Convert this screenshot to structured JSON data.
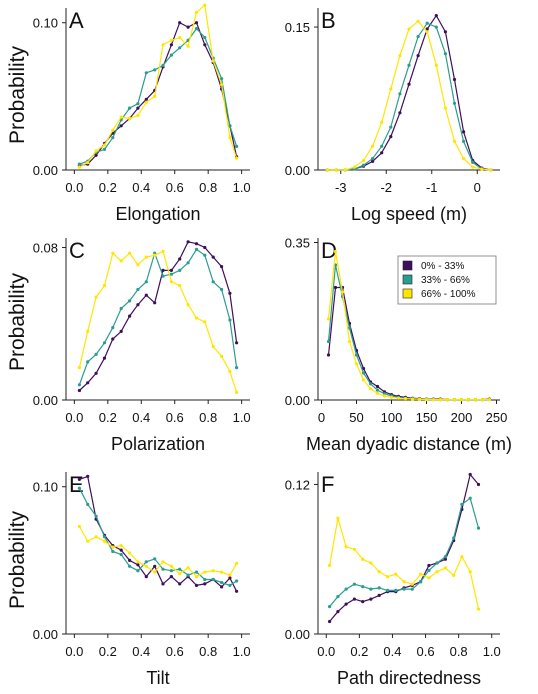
{
  "colors": {
    "c1": "#3f0e5c",
    "c2": "#2a9d8f",
    "c3": "#ffe600"
  },
  "ylabel": "Probability",
  "legend": {
    "placement": "top-right of panel D",
    "entries": [
      "0% - 33%",
      "33% - 66%",
      "66% - 100%"
    ]
  },
  "chart_data": [
    {
      "panel": "A",
      "type": "line",
      "xlabel": "Elongation",
      "ylabel": "Probability",
      "xlim": [
        -0.05,
        1.05
      ],
      "ylim": [
        0,
        0.11
      ],
      "xticks": [
        "0.0",
        "0.2",
        "0.4",
        "0.6",
        "0.8",
        "1.0"
      ],
      "xtick_values": [
        0,
        0.2,
        0.4,
        0.6,
        0.8,
        1.0
      ],
      "yticks": [
        "0.00",
        "0.10"
      ],
      "ytick_values": [
        0,
        0.1
      ],
      "x": [
        0.03,
        0.08,
        0.13,
        0.18,
        0.23,
        0.28,
        0.33,
        0.38,
        0.43,
        0.48,
        0.53,
        0.58,
        0.63,
        0.68,
        0.73,
        0.78,
        0.83,
        0.88,
        0.93,
        0.97
      ],
      "series": [
        {
          "color": "c1",
          "values": [
            0.003,
            0.004,
            0.01,
            0.018,
            0.025,
            0.03,
            0.035,
            0.042,
            0.048,
            0.054,
            0.07,
            0.085,
            0.1,
            0.097,
            0.1,
            0.085,
            0.073,
            0.055,
            0.03,
            0.009
          ]
        },
        {
          "color": "c2",
          "values": [
            0.004,
            0.006,
            0.012,
            0.014,
            0.022,
            0.034,
            0.042,
            0.045,
            0.066,
            0.068,
            0.071,
            0.078,
            0.083,
            0.088,
            0.096,
            0.09,
            0.076,
            0.062,
            0.03,
            0.016
          ]
        },
        {
          "color": "c3",
          "values": [
            0.002,
            0.005,
            0.013,
            0.017,
            0.027,
            0.036,
            0.035,
            0.037,
            0.046,
            0.05,
            0.085,
            0.088,
            0.09,
            0.084,
            0.107,
            0.112,
            0.074,
            0.058,
            0.022,
            0.008
          ]
        }
      ]
    },
    {
      "panel": "B",
      "type": "line",
      "xlabel": "Log speed (m)",
      "ylabel": "",
      "xlim": [
        -3.5,
        0.5
      ],
      "ylim": [
        0,
        0.17
      ],
      "xticks": [
        "-3",
        "-2",
        "-1",
        "0"
      ],
      "xtick_values": [
        -3,
        -2,
        -1,
        0
      ],
      "yticks": [
        "0.00",
        "0.15"
      ],
      "ytick_values": [
        0,
        0.15
      ],
      "x": [
        -3.3,
        -3.1,
        -2.9,
        -2.7,
        -2.5,
        -2.3,
        -2.1,
        -1.9,
        -1.7,
        -1.5,
        -1.3,
        -1.1,
        -0.9,
        -0.7,
        -0.5,
        -0.3,
        -0.1,
        0.1,
        0.3
      ],
      "series": [
        {
          "color": "c1",
          "values": [
            0.0,
            0.0,
            0.0,
            0.001,
            0.004,
            0.009,
            0.018,
            0.035,
            0.06,
            0.09,
            0.12,
            0.148,
            0.162,
            0.145,
            0.095,
            0.04,
            0.01,
            0.002,
            0.0
          ]
        },
        {
          "color": "c2",
          "values": [
            0.0,
            0.0,
            0.0,
            0.001,
            0.005,
            0.012,
            0.025,
            0.045,
            0.08,
            0.11,
            0.14,
            0.154,
            0.15,
            0.122,
            0.07,
            0.03,
            0.008,
            0.001,
            0.0
          ]
        },
        {
          "color": "c3",
          "values": [
            0.0,
            0.0,
            0.0,
            0.003,
            0.01,
            0.025,
            0.05,
            0.085,
            0.12,
            0.148,
            0.156,
            0.145,
            0.11,
            0.065,
            0.03,
            0.012,
            0.003,
            0.001,
            0.0
          ]
        }
      ]
    },
    {
      "panel": "C",
      "type": "line",
      "xlabel": "Polarization",
      "ylabel": "Probability",
      "xlim": [
        -0.05,
        1.05
      ],
      "ylim": [
        0,
        0.085
      ],
      "xticks": [
        "0.0",
        "0.2",
        "0.4",
        "0.6",
        "0.8",
        "1.0"
      ],
      "xtick_values": [
        0,
        0.2,
        0.4,
        0.6,
        0.8,
        1.0
      ],
      "yticks": [
        "0.00",
        "0.08"
      ],
      "ytick_values": [
        0,
        0.08
      ],
      "x": [
        0.03,
        0.08,
        0.13,
        0.18,
        0.23,
        0.28,
        0.33,
        0.38,
        0.43,
        0.48,
        0.53,
        0.58,
        0.63,
        0.68,
        0.73,
        0.78,
        0.83,
        0.88,
        0.93,
        0.97
      ],
      "series": [
        {
          "color": "c1",
          "values": [
            0.005,
            0.009,
            0.014,
            0.022,
            0.032,
            0.036,
            0.044,
            0.05,
            0.055,
            0.051,
            0.068,
            0.068,
            0.074,
            0.083,
            0.082,
            0.08,
            0.075,
            0.07,
            0.056,
            0.03
          ]
        },
        {
          "color": "c2",
          "values": [
            0.008,
            0.02,
            0.024,
            0.03,
            0.038,
            0.048,
            0.052,
            0.058,
            0.062,
            0.077,
            0.065,
            0.066,
            0.068,
            0.072,
            0.079,
            0.076,
            0.062,
            0.058,
            0.042,
            0.017
          ]
        },
        {
          "color": "c3",
          "values": [
            0.017,
            0.036,
            0.054,
            0.06,
            0.077,
            0.073,
            0.077,
            0.071,
            0.075,
            0.076,
            0.078,
            0.062,
            0.06,
            0.05,
            0.043,
            0.041,
            0.028,
            0.023,
            0.015,
            0.004
          ]
        }
      ]
    },
    {
      "panel": "D",
      "type": "line",
      "xlabel": "Mean dyadic distance (m)",
      "ylabel": "",
      "xlim": [
        -5,
        255
      ],
      "ylim": [
        0,
        0.36
      ],
      "xticks": [
        "0",
        "50",
        "100",
        "150",
        "200",
        "250"
      ],
      "xtick_values": [
        0,
        50,
        100,
        150,
        200,
        250
      ],
      "yticks": [
        "0.00",
        "0.35"
      ],
      "ytick_values": [
        0,
        0.35
      ],
      "x": [
        10,
        20,
        30,
        40,
        50,
        60,
        70,
        80,
        90,
        100,
        110,
        120,
        130,
        140,
        150,
        160,
        170,
        180,
        190,
        200,
        210,
        220,
        230,
        240
      ],
      "series": [
        {
          "color": "c1",
          "values": [
            0.1,
            0.25,
            0.25,
            0.17,
            0.11,
            0.07,
            0.04,
            0.03,
            0.018,
            0.012,
            0.008,
            0.006,
            0.004,
            0.003,
            0.002,
            0.002,
            0.002,
            0.001,
            0.001,
            0.001,
            0.001,
            0.001,
            0.001,
            0.002
          ]
        },
        {
          "color": "c2",
          "values": [
            0.13,
            0.3,
            0.23,
            0.16,
            0.1,
            0.06,
            0.036,
            0.022,
            0.014,
            0.009,
            0.006,
            0.004,
            0.003,
            0.002,
            0.002,
            0.001,
            0.001,
            0.001,
            0.001,
            0.001,
            0.001,
            0.001,
            0.001,
            0.001
          ]
        },
        {
          "color": "c3",
          "values": [
            0.18,
            0.33,
            0.24,
            0.13,
            0.08,
            0.045,
            0.025,
            0.015,
            0.009,
            0.006,
            0.004,
            0.003,
            0.002,
            0.002,
            0.001,
            0.001,
            0.001,
            0.001,
            0.001,
            0.001,
            0.001,
            0.001,
            0.001,
            0.001
          ]
        }
      ]
    },
    {
      "panel": "E",
      "type": "line",
      "xlabel": "Tilt",
      "ylabel": "Probability",
      "xlim": [
        -0.05,
        1.05
      ],
      "ylim": [
        0,
        0.11
      ],
      "xticks": [
        "0.0",
        "0.2",
        "0.4",
        "0.6",
        "0.8",
        "1.0"
      ],
      "xtick_values": [
        0,
        0.2,
        0.4,
        0.6,
        0.8,
        1.0
      ],
      "yticks": [
        "0.00",
        "0.10"
      ],
      "ytick_values": [
        0,
        0.1
      ],
      "x": [
        0.03,
        0.08,
        0.13,
        0.18,
        0.23,
        0.28,
        0.33,
        0.38,
        0.43,
        0.48,
        0.53,
        0.58,
        0.63,
        0.68,
        0.73,
        0.78,
        0.83,
        0.88,
        0.93,
        0.97
      ],
      "series": [
        {
          "color": "c1",
          "values": [
            0.105,
            0.107,
            0.078,
            0.067,
            0.06,
            0.057,
            0.05,
            0.047,
            0.039,
            0.046,
            0.034,
            0.039,
            0.034,
            0.039,
            0.033,
            0.034,
            0.037,
            0.032,
            0.038,
            0.029
          ]
        },
        {
          "color": "c2",
          "values": [
            0.099,
            0.088,
            0.08,
            0.066,
            0.056,
            0.054,
            0.046,
            0.043,
            0.049,
            0.051,
            0.044,
            0.043,
            0.044,
            0.04,
            0.042,
            0.037,
            0.037,
            0.035,
            0.033,
            0.036
          ]
        },
        {
          "color": "c3",
          "values": [
            0.073,
            0.063,
            0.066,
            0.063,
            0.059,
            0.06,
            0.055,
            0.049,
            0.046,
            0.042,
            0.049,
            0.046,
            0.041,
            0.045,
            0.039,
            0.042,
            0.043,
            0.042,
            0.04,
            0.048
          ]
        }
      ]
    },
    {
      "panel": "F",
      "type": "line",
      "xlabel": "Path directedness",
      "ylabel": "",
      "xlim": [
        -0.05,
        1.05
      ],
      "ylim": [
        0,
        0.13
      ],
      "xticks": [
        "0.0",
        "0.2",
        "0.4",
        "0.6",
        "0.8",
        "1.0"
      ],
      "xtick_values": [
        0,
        0.2,
        0.4,
        0.6,
        0.8,
        1.0
      ],
      "yticks": [
        "0.00",
        "0.12"
      ],
      "ytick_values": [
        0,
        0.12
      ],
      "x": [
        0.02,
        0.07,
        0.12,
        0.17,
        0.22,
        0.27,
        0.32,
        0.37,
        0.42,
        0.47,
        0.52,
        0.57,
        0.62,
        0.67,
        0.72,
        0.77,
        0.82,
        0.87,
        0.92
      ],
      "series": [
        {
          "color": "c1",
          "values": [
            0.01,
            0.018,
            0.024,
            0.028,
            0.026,
            0.028,
            0.031,
            0.034,
            0.034,
            0.037,
            0.039,
            0.042,
            0.055,
            0.057,
            0.06,
            0.075,
            0.1,
            0.128,
            0.12
          ]
        },
        {
          "color": "c2",
          "values": [
            0.022,
            0.03,
            0.036,
            0.04,
            0.038,
            0.036,
            0.037,
            0.035,
            0.035,
            0.036,
            0.036,
            0.042,
            0.051,
            0.057,
            0.062,
            0.077,
            0.104,
            0.109,
            0.085
          ]
        },
        {
          "color": "c3",
          "values": [
            0.055,
            0.093,
            0.07,
            0.068,
            0.06,
            0.057,
            0.05,
            0.046,
            0.048,
            0.042,
            0.04,
            0.048,
            0.045,
            0.05,
            0.053,
            0.047,
            0.062,
            0.05,
            0.02
          ]
        }
      ]
    }
  ]
}
